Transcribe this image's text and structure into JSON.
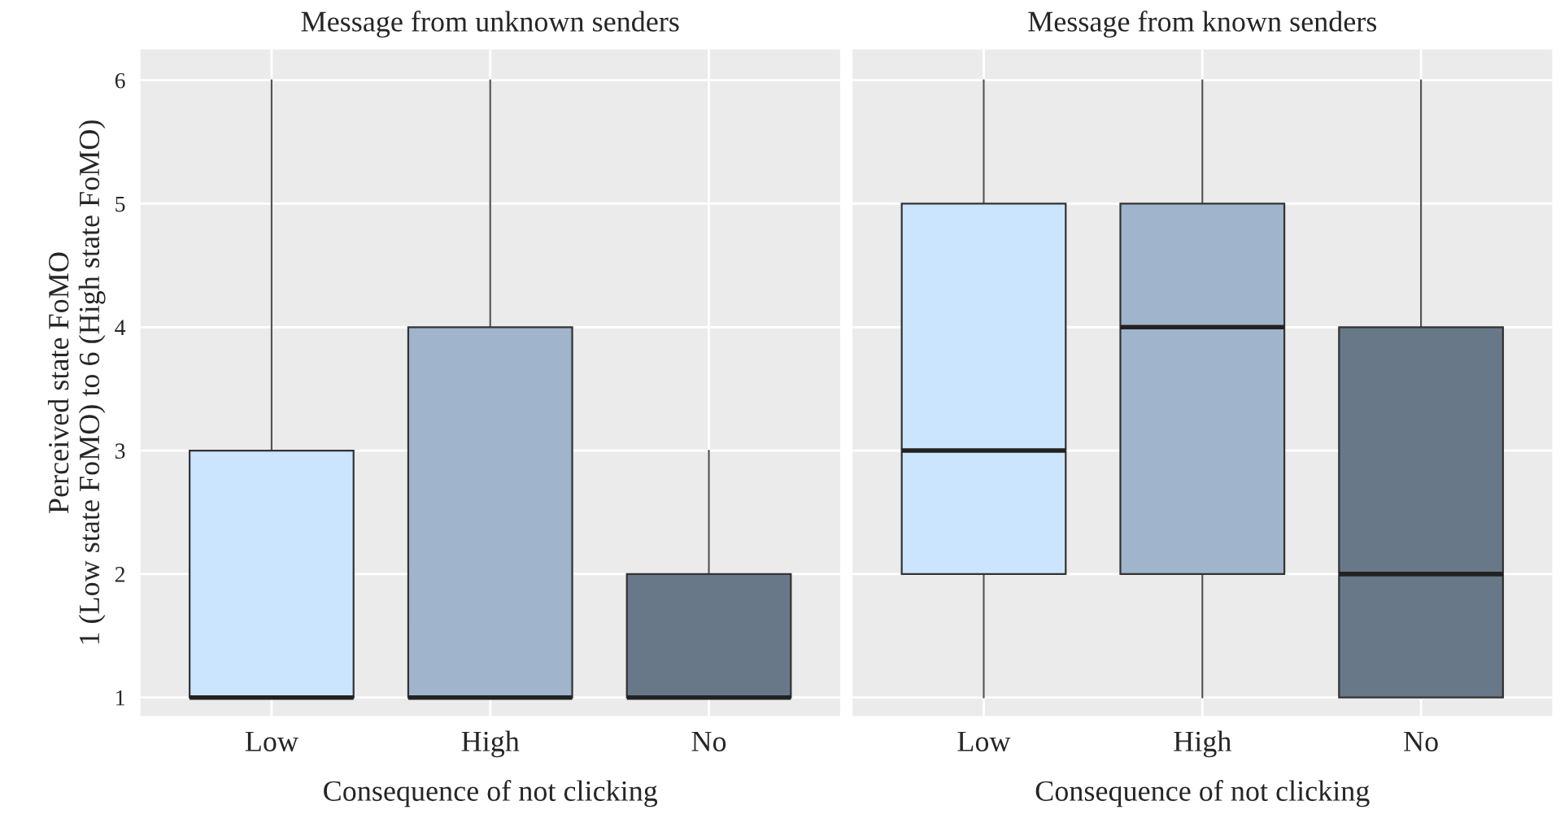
{
  "chart_data": [
    {
      "type": "box",
      "title": "Message from unknown senders",
      "xlabel": "Consequence of not clicking",
      "ylabel": "Perceived state FoMO\n1 (Low state FoMO) to 6 (High state FoMO)",
      "categories": [
        "Low",
        "High",
        "No"
      ],
      "colors": [
        "#cce5ff",
        "#a0b4cc",
        "#687888"
      ],
      "boxes": [
        {
          "low": 1,
          "q1": 1,
          "median": 1,
          "q3": 3,
          "high": 6
        },
        {
          "low": 1,
          "q1": 1,
          "median": 1,
          "q3": 4,
          "high": 6
        },
        {
          "low": 1,
          "q1": 1,
          "median": 1,
          "q3": 2,
          "high": 3
        }
      ],
      "ylim": [
        0.85,
        6.25
      ],
      "yticks": [
        1,
        2,
        3,
        4,
        5,
        6
      ],
      "grid": true
    },
    {
      "type": "box",
      "title": "Message from known senders",
      "xlabel": "Consequence of not clicking",
      "categories": [
        "Low",
        "High",
        "No"
      ],
      "colors": [
        "#cce5ff",
        "#a0b4cc",
        "#687888"
      ],
      "boxes": [
        {
          "low": 1,
          "q1": 2,
          "median": 3,
          "q3": 5,
          "high": 6
        },
        {
          "low": 1,
          "q1": 2,
          "median": 4,
          "q3": 5,
          "high": 6
        },
        {
          "low": 1,
          "q1": 1,
          "median": 2,
          "q3": 4,
          "high": 6
        }
      ],
      "ylim": [
        0.85,
        6.25
      ],
      "yticks": [
        1,
        2,
        3,
        4,
        5,
        6
      ],
      "grid": true,
      "tick_labels": "x"
    }
  ]
}
